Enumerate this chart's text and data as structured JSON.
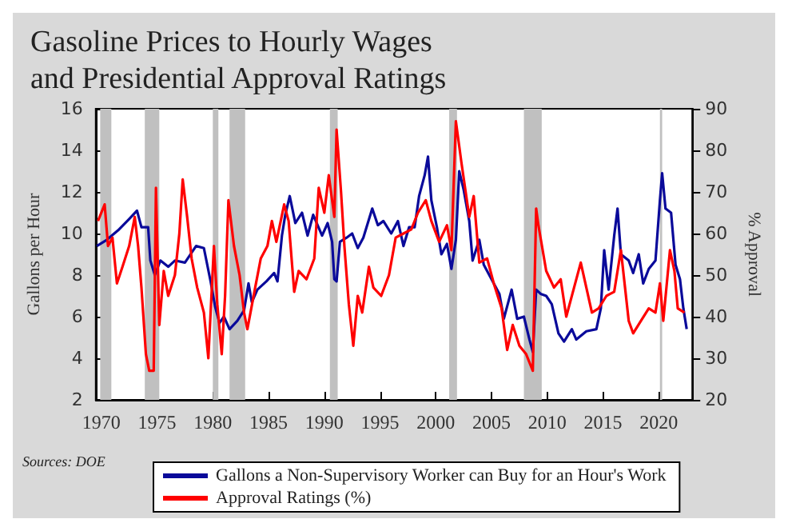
{
  "chart_data": {
    "type": "line",
    "title": "Gasoline Prices to Hourly Wages\nand Presidential Approval Ratings",
    "ylabel": "Gallons per Hour",
    "y2label": "% Approval",
    "annotations": [
      "Sources: DOE"
    ],
    "xlim": [
      1969.5,
      2023
    ],
    "xticks": [
      1970,
      1975,
      1980,
      1985,
      1990,
      1995,
      2000,
      2005,
      2010,
      2015,
      2020
    ],
    "ylim": [
      2,
      16
    ],
    "yticks": [
      2,
      4,
      6,
      8,
      10,
      12,
      14,
      16
    ],
    "y2lim": [
      20,
      90
    ],
    "y2ticks": [
      20,
      30,
      40,
      50,
      60,
      70,
      80,
      90
    ],
    "grid": false,
    "legend": "bottom",
    "marker": "none",
    "line_style": "solid",
    "bands": [
      {
        "axis": "x",
        "from": 1969.9,
        "to": 1970.9,
        "color": "#c0c0c0"
      },
      {
        "axis": "x",
        "from": 1973.9,
        "to": 1975.2,
        "color": "#c0c0c0"
      },
      {
        "axis": "x",
        "from": 1980.0,
        "to": 1980.5,
        "color": "#c0c0c0"
      },
      {
        "axis": "x",
        "from": 1981.5,
        "to": 1982.9,
        "color": "#c0c0c0"
      },
      {
        "axis": "x",
        "from": 1990.5,
        "to": 1991.2,
        "color": "#c0c0c0"
      },
      {
        "axis": "x",
        "from": 2001.2,
        "to": 2001.9,
        "color": "#c0c0c0"
      },
      {
        "axis": "x",
        "from": 2007.9,
        "to": 2009.5,
        "color": "#c0c0c0"
      },
      {
        "axis": "x",
        "from": 2020.1,
        "to": 2020.3,
        "color": "#c0c0c0"
      }
    ],
    "series": [
      {
        "name": "Gallons a Non-Supervisory Worker can Buy for an Hour's Work",
        "color": "#0a0a9a",
        "x": [
          1969.6,
          1970.5,
          1971.5,
          1972.5,
          1973.2,
          1973.6,
          1974.2,
          1974.4,
          1974.8,
          1975.3,
          1976,
          1976.6,
          1977.5,
          1978.5,
          1979.2,
          1979.8,
          1980.2,
          1980.6,
          1981,
          1981.5,
          1982.2,
          1982.8,
          1983.2,
          1983.5,
          1984,
          1984.8,
          1985.5,
          1985.8,
          1986.2,
          1986.5,
          1986.9,
          1987.4,
          1988,
          1988.5,
          1989,
          1989.4,
          1989.8,
          1990.3,
          1990.7,
          1990.9,
          1991.1,
          1991.4,
          1992,
          1992.5,
          1993,
          1993.5,
          1994.3,
          1994.8,
          1995.3,
          1996,
          1996.6,
          1997.1,
          1997.6,
          1998.1,
          1998.5,
          1999.0,
          1999.3,
          1999.6,
          2000.1,
          2000.5,
          2001.0,
          2001.4,
          2001.8,
          2002.1,
          2002.5,
          2003.0,
          2003.3,
          2003.9,
          2004.3,
          2005.0,
          2005.7,
          2006.1,
          2006.8,
          2007.3,
          2007.9,
          2008.4,
          2008.7,
          2009.0,
          2009.4,
          2009.9,
          2010.4,
          2011.0,
          2011.5,
          2012.2,
          2012.6,
          2013.5,
          2014.4,
          2014.8,
          2015.1,
          2015.5,
          2016.0,
          2016.3,
          2016.6,
          2017.3,
          2017.7,
          2018.2,
          2018.6,
          2019.1,
          2019.7,
          2020.1,
          2020.3,
          2020.6,
          2021.1,
          2021.5,
          2021.9,
          2022.2,
          2022.5
        ],
        "values": [
          9.4,
          9.7,
          10.15,
          10.7,
          11.1,
          10.3,
          10.3,
          8.7,
          8.0,
          8.7,
          8.4,
          8.7,
          8.6,
          9.4,
          9.3,
          7.7,
          6.5,
          5.7,
          6.0,
          5.4,
          5.8,
          6.3,
          7.6,
          6.7,
          7.3,
          7.7,
          8.1,
          7.7,
          9.9,
          10.9,
          11.8,
          10.5,
          11,
          9.9,
          10.9,
          10.4,
          9.9,
          10.5,
          9.6,
          7.8,
          7.7,
          9.6,
          9.8,
          10,
          9.3,
          9.8,
          11.2,
          10.4,
          10.6,
          10.0,
          10.6,
          9.4,
          10.3,
          10.3,
          11.8,
          12.8,
          13.7,
          11.6,
          10.3,
          9.0,
          9.5,
          8.3,
          9.7,
          13.0,
          12.1,
          10.6,
          8.7,
          9.7,
          8.5,
          7.8,
          7.1,
          5.9,
          7.3,
          5.9,
          6.0,
          4.9,
          4.3,
          7.3,
          7.1,
          7.0,
          6.6,
          5.2,
          4.8,
          5.4,
          4.9,
          5.3,
          5.4,
          6.4,
          9.2,
          7.3,
          9.9,
          11.2,
          9.0,
          8.7,
          8.1,
          9.0,
          7.6,
          8.3,
          8.7,
          11.6,
          12.9,
          11.2,
          11.0,
          8.5,
          7.8,
          6.4,
          5.4
        ]
      },
      {
        "name": "Approval Ratings (%)",
        "color": "#ff0000",
        "axis": "y2",
        "x": [
          1969.7,
          1970.3,
          1970.6,
          1971.0,
          1971.4,
          1971.9,
          1972.5,
          1973.0,
          1973.3,
          1973.6,
          1974.0,
          1974.3,
          1974.7,
          1974.9,
          1975.2,
          1975.6,
          1976.0,
          1976.6,
          1977.0,
          1977.3,
          1977.7,
          1978.1,
          1978.6,
          1979.2,
          1979.6,
          1980.1,
          1980.4,
          1980.8,
          1981.1,
          1981.4,
          1981.9,
          1982.4,
          1982.8,
          1983.1,
          1983.8,
          1984.3,
          1984.9,
          1985.3,
          1985.7,
          1986.4,
          1986.8,
          1987.3,
          1987.7,
          1988.4,
          1989.1,
          1989.5,
          1990.0,
          1990.4,
          1990.9,
          1991.1,
          1991.5,
          1991.8,
          1992.2,
          1992.6,
          1993.0,
          1993.4,
          1994.0,
          1994.4,
          1995.1,
          1995.8,
          1996.4,
          1997.1,
          1997.8,
          1998.4,
          1999.1,
          1999.6,
          2000.3,
          2001.0,
          2001.4,
          2001.8,
          2002.3,
          2003.0,
          2003.4,
          2003.9,
          2004.6,
          2005.2,
          2005.9,
          2006.4,
          2006.9,
          2007.5,
          2008.1,
          2008.7,
          2009.0,
          2009.2,
          2009.9,
          2010.6,
          2011.2,
          2011.7,
          2012.4,
          2013.0,
          2013.5,
          2014.0,
          2014.6,
          2015.3,
          2016.0,
          2016.6,
          2017.3,
          2017.7,
          2018.4,
          2019.1,
          2019.7,
          2020.1,
          2020.4,
          2021.0,
          2021.4,
          2021.7,
          2022.3
        ],
        "values": [
          63,
          67,
          57,
          59,
          48,
          52,
          57,
          64,
          57,
          47,
          31,
          27,
          27,
          71,
          38,
          51,
          45,
          50,
          60,
          73,
          64,
          54,
          47,
          41,
          30,
          57,
          43,
          31,
          45,
          68,
          57,
          50,
          41,
          37,
          47,
          54,
          57,
          63,
          58,
          67,
          63,
          46,
          51,
          49,
          54,
          71,
          65,
          74,
          64,
          85,
          70,
          57,
          43,
          33,
          45,
          41,
          52,
          47,
          45,
          50,
          59,
          60,
          61,
          65,
          68,
          63,
          58,
          62,
          56,
          87,
          77,
          64,
          69,
          53,
          54,
          48,
          42,
          32,
          38,
          33,
          31,
          27,
          66,
          62,
          51,
          47,
          49,
          40,
          47,
          53,
          47,
          41,
          42,
          45,
          46,
          56,
          39,
          36,
          39,
          42,
          41,
          48,
          39,
          56,
          51,
          42,
          41
        ]
      }
    ]
  }
}
